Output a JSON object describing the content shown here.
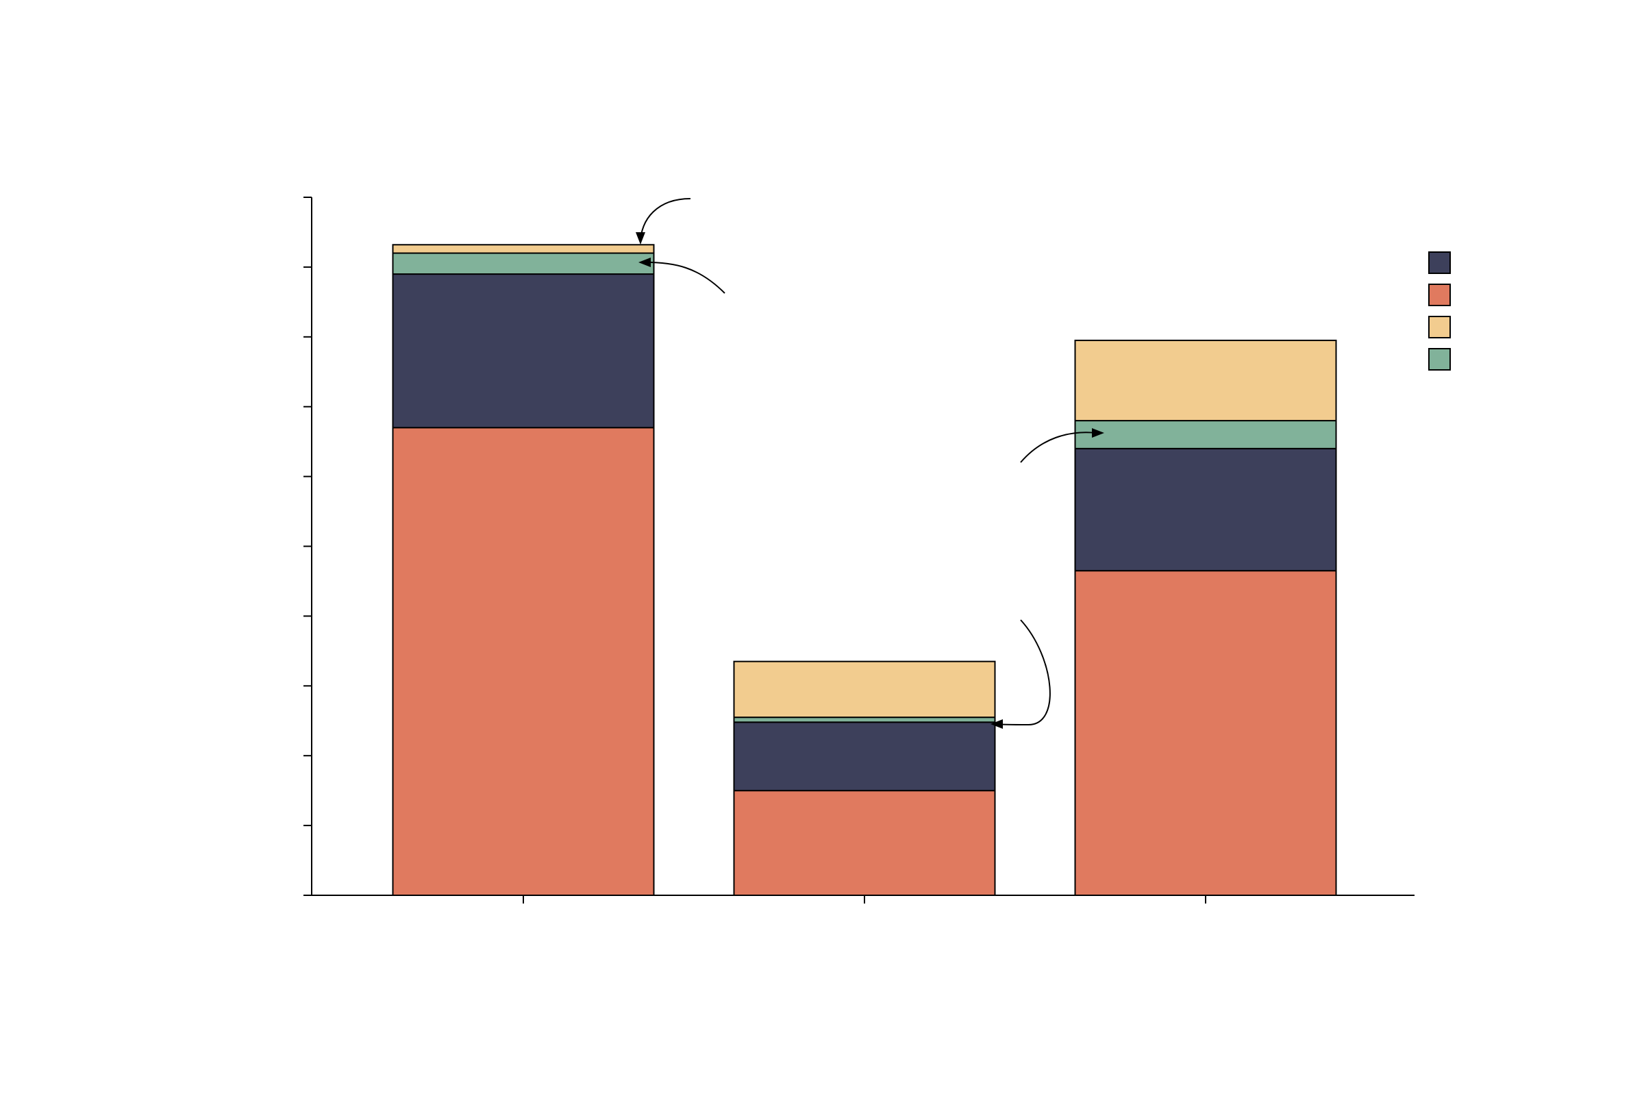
{
  "chart_data": {
    "type": "bar",
    "stacked": true,
    "categories": [
      "",
      "",
      ""
    ],
    "ylim": [
      0,
      10
    ],
    "yticks": [
      0,
      1,
      2,
      3,
      4,
      5,
      6,
      7,
      8,
      9,
      10
    ],
    "grid": false,
    "legend_position": "top-right",
    "series": [
      {
        "key": "s_red",
        "color": "#E07A5F",
        "values": [
          6.7,
          1.5,
          4.65
        ]
      },
      {
        "key": "s_navy",
        "color": "#3D405B",
        "values": [
          2.2,
          0.98,
          1.75
        ]
      },
      {
        "key": "s_green",
        "color": "#81B29A",
        "values": [
          0.3,
          0.07,
          0.4
        ]
      },
      {
        "key": "s_sand",
        "color": "#F2CC8F",
        "values": [
          0.12,
          0.8,
          1.15
        ]
      }
    ],
    "legend_order": [
      "s_navy",
      "s_red",
      "s_sand",
      "s_green"
    ],
    "annotations": [
      {
        "category_index": 0,
        "series": "s_sand",
        "label": ""
      },
      {
        "category_index": 0,
        "series": "s_green",
        "label": ""
      },
      {
        "category_index": 1,
        "series": "s_green",
        "label": ""
      },
      {
        "category_index": 2,
        "series": "s_green",
        "label": ""
      }
    ]
  }
}
